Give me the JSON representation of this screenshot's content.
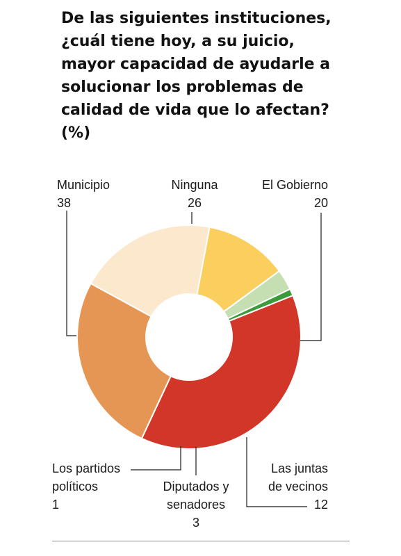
{
  "title": "De las siguientes instituciones,\n¿cuál tiene hoy, a su juicio,\nmayor capacidad de ayudarle a\nsolucionar los problemas de\ncalidad de vida que lo afectan?\n(%)",
  "chart_data": {
    "type": "pie",
    "title": "De las siguientes instituciones, ¿cuál tiene hoy, a su juicio, mayor capacidad de ayudarle a solucionar los problemas de calidad de vida que lo afectan? (%)",
    "donut": true,
    "slices": [
      {
        "key": "ninguna",
        "lines": [
          "Ninguna",
          "26"
        ],
        "label": "Ninguna",
        "value": 26,
        "color": "#e59655"
      },
      {
        "key": "el-gobierno",
        "lines": [
          "El Gobierno",
          "20"
        ],
        "label": "El Gobierno",
        "value": 20,
        "color": "#fce8cc"
      },
      {
        "key": "las-juntas-de-vecinos",
        "lines": [
          "Las juntas",
          "de vecinos",
          "12"
        ],
        "label": "Las juntas de vecinos",
        "value": 12,
        "color": "#fbcf5e"
      },
      {
        "key": "diputados-y-senadores",
        "lines": [
          "Diputados y",
          "senadores",
          "3"
        ],
        "label": "Diputados y senadores",
        "value": 3,
        "color": "#c5dfb2"
      },
      {
        "key": "los-partidos-politicos",
        "lines": [
          "Los partidos",
          "políticos",
          "1"
        ],
        "label": "Los partidos políticos",
        "value": 1,
        "color": "#3b9a39"
      },
      {
        "key": "municipio",
        "lines": [
          "Municipio",
          "38"
        ],
        "label": "Municipio",
        "value": 38,
        "color": "#d13628"
      }
    ]
  }
}
